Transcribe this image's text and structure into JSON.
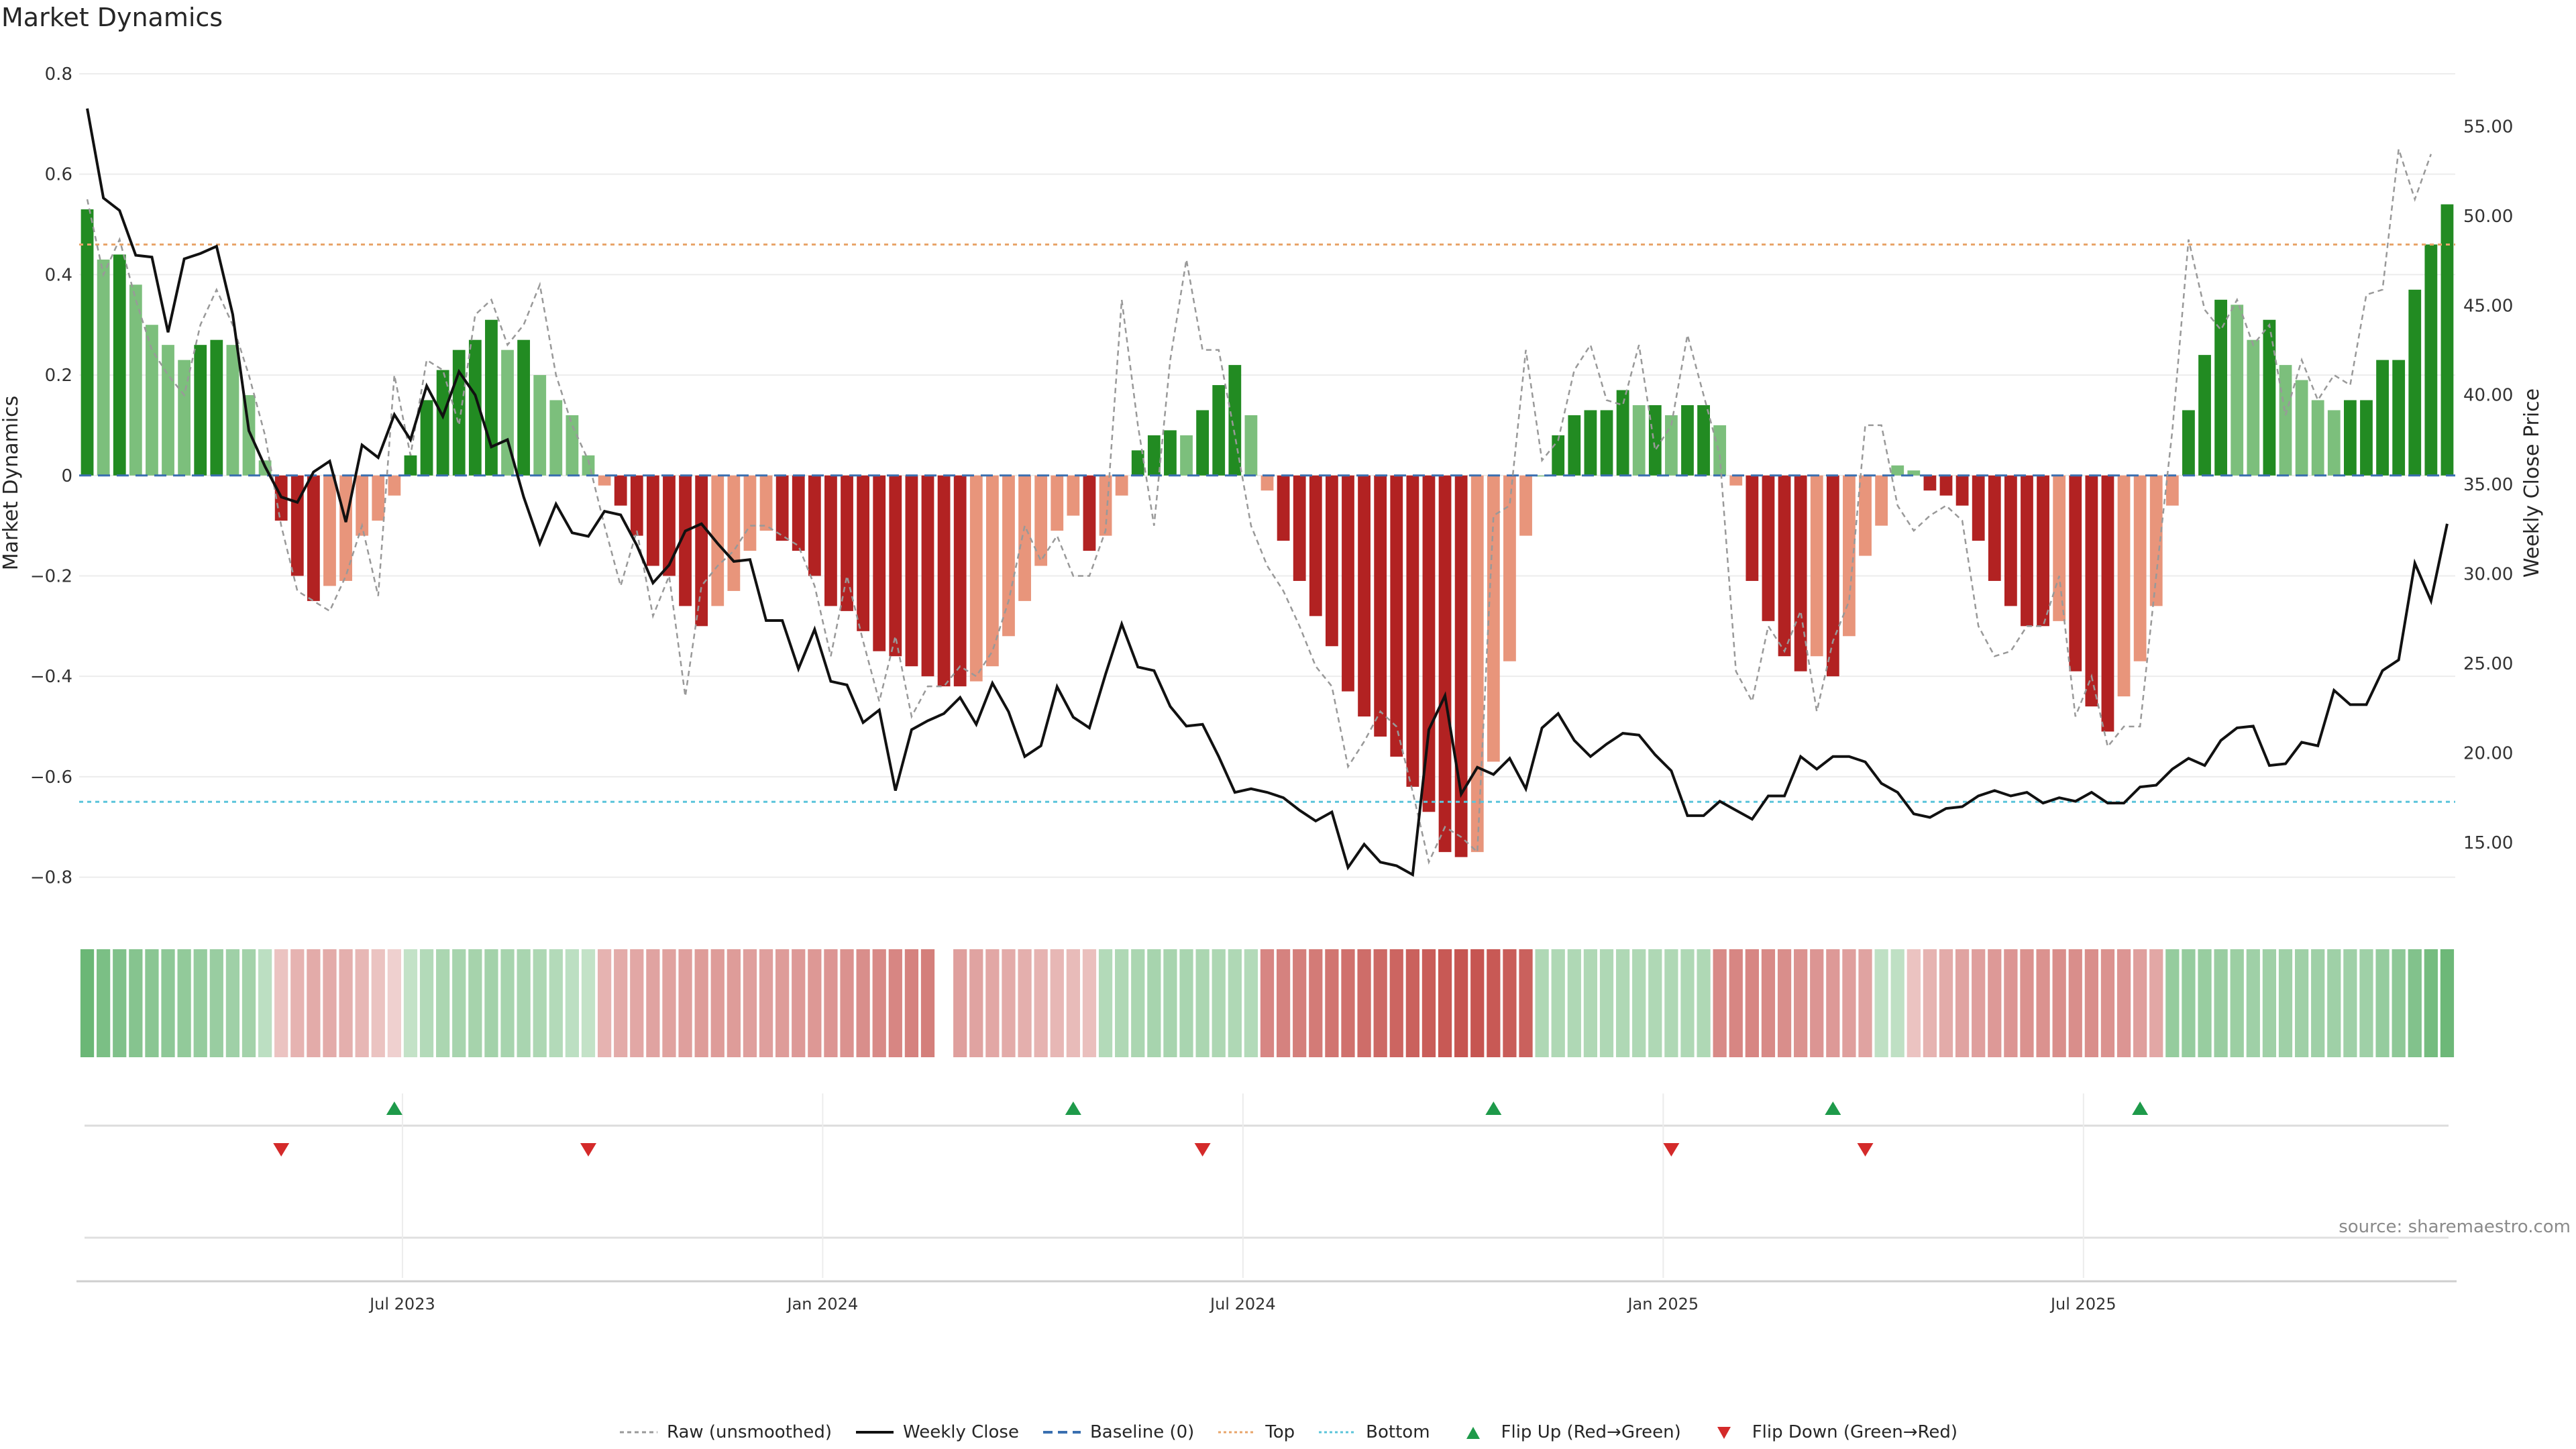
{
  "title": "Market Dynamics",
  "source": "source: sharemaestro.com",
  "colors": {
    "strong_green": "#228B22",
    "light_green": "#7CBF7C",
    "strong_red": "#B22222",
    "light_red": "#E8957B",
    "raw": "#999999",
    "close": "#111111",
    "baseline": "#3A6FB0",
    "top": "#E8A56B",
    "bottom": "#5BC4DA",
    "flip_up": "#1E9A4A",
    "flip_down": "#D42A2A"
  },
  "legend": [
    {
      "key": "raw",
      "label": "Raw (unsmoothed)"
    },
    {
      "key": "close",
      "label": "Weekly Close"
    },
    {
      "key": "baseline",
      "label": "Baseline (0)"
    },
    {
      "key": "top",
      "label": "Top"
    },
    {
      "key": "bottom",
      "label": "Bottom"
    },
    {
      "key": "flip_up",
      "label": "Flip Up (Red→Green)"
    },
    {
      "key": "flip_down",
      "label": "Flip Down (Green→Red)"
    }
  ],
  "chart_data": {
    "type": "bar",
    "ylabel": "Market Dynamics",
    "y2label": "Weekly Close Price",
    "ylim": [
      -0.85,
      0.82
    ],
    "y2lim": [
      11.66,
      58.5
    ],
    "yticks": [
      "0.8",
      "0.6",
      "0.4",
      "0.2",
      "0",
      "−0.2",
      "−0.4",
      "−0.6",
      "−0.8"
    ],
    "y2ticks": [
      "55.00",
      "50.00",
      "45.00",
      "40.00",
      "35.00",
      "30.00",
      "25.00",
      "20.00",
      "15.00"
    ],
    "xticks": [
      "Jul 2023",
      "Jan 2024",
      "Jul 2024",
      "Jan 2025",
      "Jul 2025"
    ],
    "xtick_index": [
      20,
      46,
      72,
      98,
      124
    ],
    "top_line": 0.46,
    "bottom_line": -0.65,
    "baseline": 0,
    "grid": true,
    "legend_position": "bottom",
    "smoothed": [
      0.53,
      0.43,
      0.44,
      0.38,
      0.3,
      0.26,
      0.23,
      0.26,
      0.27,
      0.26,
      0.16,
      0.03,
      -0.09,
      -0.2,
      -0.25,
      -0.22,
      -0.21,
      -0.12,
      -0.09,
      -0.04,
      0.04,
      0.15,
      0.21,
      0.25,
      0.27,
      0.31,
      0.25,
      0.27,
      0.2,
      0.15,
      0.12,
      0.04,
      -0.02,
      -0.06,
      -0.12,
      -0.18,
      -0.2,
      -0.26,
      -0.3,
      -0.26,
      -0.23,
      -0.15,
      -0.11,
      -0.13,
      -0.15,
      -0.2,
      -0.26,
      -0.27,
      -0.31,
      -0.35,
      -0.36,
      -0.38,
      -0.4,
      -0.42,
      -0.42,
      -0.41,
      -0.38,
      -0.32,
      -0.25,
      -0.18,
      -0.11,
      -0.08,
      -0.15,
      -0.12,
      -0.04,
      0.05,
      0.08,
      0.09,
      0.08,
      0.13,
      0.18,
      0.22,
      0.12,
      -0.03,
      -0.13,
      -0.21,
      -0.28,
      -0.34,
      -0.43,
      -0.48,
      -0.52,
      -0.56,
      -0.62,
      -0.67,
      -0.75,
      -0.76,
      -0.75,
      -0.57,
      -0.37,
      -0.12,
      0,
      0.08,
      0.12,
      0.13,
      0.13,
      0.17,
      0.14,
      0.14,
      0.12,
      0.14,
      0.14,
      0.1,
      -0.02,
      -0.21,
      -0.29,
      -0.36,
      -0.39,
      -0.36,
      -0.4,
      -0.32,
      -0.16,
      -0.1,
      0.02,
      0.01,
      -0.03,
      -0.04,
      -0.06,
      -0.13,
      -0.21,
      -0.26,
      -0.3,
      -0.3,
      -0.29,
      -0.39,
      -0.46,
      -0.51,
      -0.44,
      -0.37,
      -0.26,
      -0.06,
      0.13,
      0.24,
      0.35,
      0.34,
      0.27,
      0.31,
      0.22,
      0.19,
      0.15,
      0.13,
      0.15,
      0.15,
      0.23,
      0.23,
      0.37,
      0.46,
      0.54
    ],
    "raw": [
      0.55,
      0.4,
      0.47,
      0.35,
      0.25,
      0.2,
      0.16,
      0.3,
      0.37,
      0.3,
      0.2,
      0.08,
      -0.1,
      -0.23,
      -0.25,
      -0.27,
      -0.2,
      -0.1,
      -0.24,
      0.2,
      0.04,
      0.23,
      0.21,
      0.1,
      0.32,
      0.35,
      0.26,
      0.3,
      0.38,
      0.2,
      0.1,
      0.03,
      -0.1,
      -0.22,
      -0.11,
      -0.28,
      -0.2,
      -0.44,
      -0.22,
      -0.18,
      -0.15,
      -0.1,
      -0.1,
      -0.12,
      -0.14,
      -0.22,
      -0.36,
      -0.2,
      -0.33,
      -0.45,
      -0.32,
      -0.48,
      -0.42,
      -0.42,
      -0.38,
      -0.4,
      -0.35,
      -0.25,
      -0.1,
      -0.17,
      -0.12,
      -0.2,
      -0.2,
      -0.11,
      0.35,
      0.1,
      -0.1,
      0.23,
      0.43,
      0.25,
      0.25,
      0.08,
      -0.1,
      -0.18,
      -0.23,
      -0.3,
      -0.38,
      -0.42,
      -0.58,
      -0.53,
      -0.47,
      -0.5,
      -0.63,
      -0.77,
      -0.7,
      -0.72,
      -0.75,
      -0.08,
      -0.06,
      0.25,
      0.03,
      0.07,
      0.21,
      0.26,
      0.15,
      0.14,
      0.26,
      0.05,
      0.1,
      0.28,
      0.16,
      0.04,
      -0.39,
      -0.45,
      -0.3,
      -0.35,
      -0.27,
      -0.47,
      -0.33,
      -0.25,
      0.1,
      0.1,
      -0.06,
      -0.11,
      -0.08,
      -0.06,
      -0.09,
      -0.3,
      -0.36,
      -0.35,
      -0.3,
      -0.3,
      -0.2,
      -0.48,
      -0.4,
      -0.54,
      -0.5,
      -0.5,
      -0.2,
      0.09,
      0.47,
      0.33,
      0.29,
      0.35,
      0.26,
      0.3,
      0.12,
      0.23,
      0.15,
      0.2,
      0.18,
      0.36,
      0.37,
      0.65,
      0.55,
      0.64
    ],
    "close": [
      56.0,
      51.0,
      50.3,
      47.8,
      47.7,
      43.5,
      47.6,
      47.9,
      48.3,
      44.5,
      38.0,
      36.0,
      34.3,
      34.0,
      35.7,
      36.3,
      32.9,
      37.2,
      36.5,
      38.9,
      37.5,
      40.5,
      38.8,
      41.3,
      40.0,
      37.1,
      37.5,
      34.3,
      31.7,
      33.9,
      32.3,
      32.1,
      33.5,
      33.3,
      31.6,
      29.5,
      30.5,
      32.4,
      32.8,
      31.7,
      30.7,
      30.8,
      27.4,
      27.4,
      24.7,
      26.9,
      24.0,
      23.8,
      21.7,
      22.4,
      17.9,
      21.3,
      21.8,
      22.2,
      23.1,
      21.6,
      23.9,
      22.3,
      19.8,
      20.4,
      23.7,
      22.0,
      21.4,
      24.4,
      27.2,
      24.8,
      24.6,
      22.6,
      21.5,
      21.6,
      19.8,
      17.8,
      18.0,
      17.8,
      17.5,
      16.8,
      16.2,
      16.7,
      13.6,
      14.9,
      13.9,
      13.7,
      13.2,
      21.3,
      23.2,
      17.7,
      19.2,
      18.8,
      19.7,
      18.0,
      21.4,
      22.2,
      20.7,
      19.8,
      20.5,
      21.1,
      21.0,
      19.9,
      19.0,
      16.5,
      16.5,
      17.3,
      16.8,
      16.3,
      17.6,
      17.6,
      19.8,
      19.1,
      19.8,
      19.8,
      19.5,
      18.3,
      17.8,
      16.6,
      16.4,
      16.9,
      17.0,
      17.6,
      17.9,
      17.6,
      17.8,
      17.2,
      17.5,
      17.3,
      17.8,
      17.2,
      17.2,
      18.1,
      18.2,
      19.1,
      19.7,
      19.3,
      20.7,
      21.4,
      21.5,
      19.3,
      19.4,
      20.6,
      20.4,
      23.5,
      22.7,
      22.7,
      24.6,
      25.2,
      30.6,
      28.5,
      32.8
    ],
    "heat": [
      0.55,
      0.48,
      0.45,
      0.42,
      0.4,
      0.38,
      0.36,
      0.34,
      0.32,
      0.3,
      0.28,
      0.15,
      -0.12,
      -0.2,
      -0.24,
      -0.24,
      -0.22,
      -0.18,
      -0.12,
      -0.06,
      0.12,
      0.2,
      0.24,
      0.26,
      0.27,
      0.28,
      0.26,
      0.25,
      0.23,
      0.2,
      0.15,
      0.12,
      -0.2,
      -0.24,
      -0.26,
      -0.28,
      -0.29,
      -0.3,
      -0.31,
      -0.31,
      -0.31,
      -0.3,
      -0.3,
      -0.31,
      -0.32,
      -0.33,
      -0.34,
      -0.36,
      -0.38,
      -0.4,
      -0.42,
      -0.44,
      -0.46,
      null,
      -0.3,
      -0.28,
      -0.26,
      -0.24,
      -0.22,
      -0.2,
      -0.18,
      -0.16,
      -0.14,
      0.2,
      0.22,
      0.24,
      0.26,
      0.26,
      0.25,
      0.24,
      0.23,
      0.22,
      0.2,
      -0.42,
      -0.44,
      -0.46,
      -0.48,
      -0.5,
      -0.52,
      -0.54,
      -0.56,
      -0.58,
      -0.6,
      -0.62,
      -0.64,
      -0.66,
      -0.66,
      -0.64,
      -0.62,
      -0.6,
      0.22,
      0.22,
      0.22,
      0.22,
      0.22,
      0.22,
      0.22,
      0.22,
      0.22,
      0.22,
      0.22,
      -0.4,
      -0.42,
      -0.42,
      -0.4,
      -0.38,
      -0.36,
      -0.34,
      -0.32,
      -0.3,
      -0.28,
      0.14,
      0.14,
      -0.12,
      -0.2,
      -0.24,
      -0.28,
      -0.3,
      -0.32,
      -0.34,
      -0.36,
      -0.36,
      -0.38,
      -0.38,
      -0.38,
      -0.36,
      -0.34,
      -0.3,
      -0.26,
      0.34,
      0.34,
      0.33,
      0.32,
      0.31,
      0.3,
      0.3,
      0.3,
      0.3,
      0.3,
      0.3,
      0.3,
      0.3,
      0.34,
      0.38,
      0.44,
      0.5,
      0.54
    ],
    "flip_up_index": [
      19,
      61,
      87,
      108,
      127
    ],
    "flip_down_index": [
      12,
      31,
      69,
      98,
      110
    ]
  }
}
